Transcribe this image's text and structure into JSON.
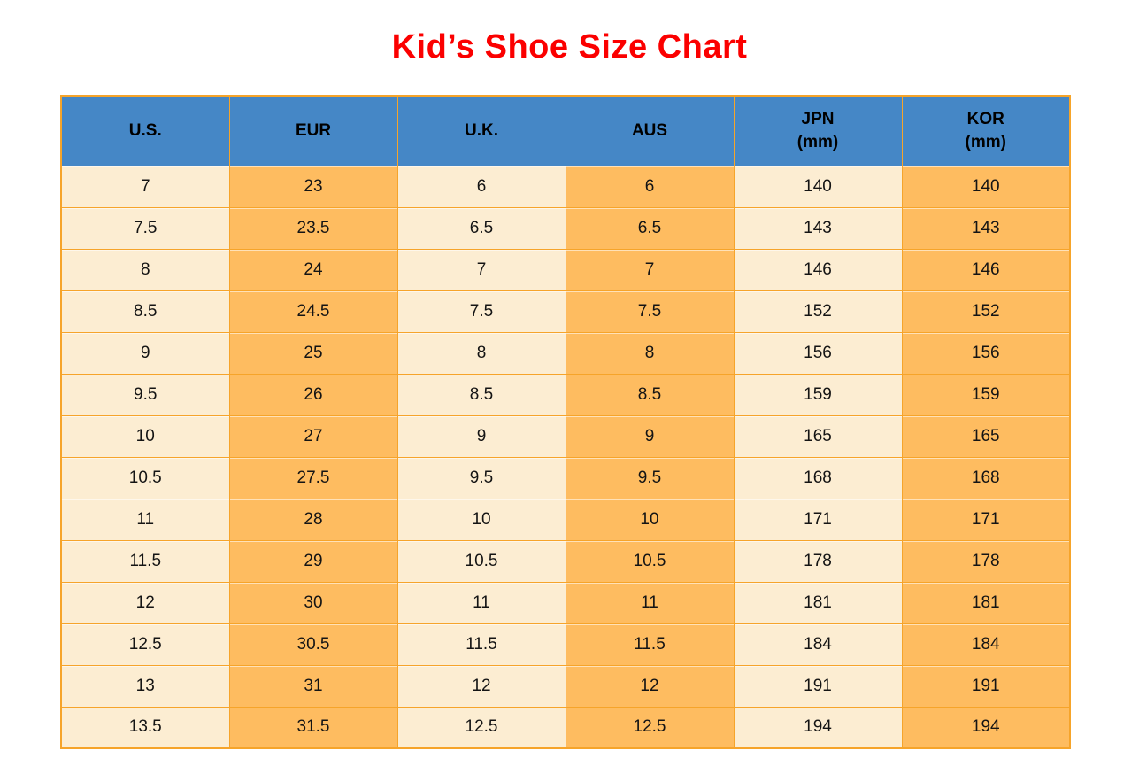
{
  "title": "Kid’s Shoe Size Chart",
  "colors": {
    "title_red": "#FB0000",
    "header_blue": "#4587C6",
    "cell_cream": "#FCEDD2",
    "cell_orange": "#FEBC60",
    "grid_orange": "#F6A42A",
    "text_black": "#141414"
  },
  "chart_data": {
    "type": "table",
    "title": "Kid’s Shoe Size Chart",
    "columns": [
      "U.S.",
      "EUR",
      "U.K.",
      "AUS",
      "JPN (mm)",
      "KOR (mm)"
    ],
    "header_lines": [
      [
        "U.S."
      ],
      [
        "EUR"
      ],
      [
        "U.K."
      ],
      [
        "AUS"
      ],
      [
        "JPN",
        "(mm)"
      ],
      [
        "KOR",
        "(mm)"
      ]
    ],
    "column_fill_pattern": [
      "cream",
      "orange",
      "cream",
      "orange",
      "cream",
      "orange"
    ],
    "rows": [
      [
        "7",
        "23",
        "6",
        "6",
        "140",
        "140"
      ],
      [
        "7.5",
        "23.5",
        "6.5",
        "6.5",
        "143",
        "143"
      ],
      [
        "8",
        "24",
        "7",
        "7",
        "146",
        "146"
      ],
      [
        "8.5",
        "24.5",
        "7.5",
        "7.5",
        "152",
        "152"
      ],
      [
        "9",
        "25",
        "8",
        "8",
        "156",
        "156"
      ],
      [
        "9.5",
        "26",
        "8.5",
        "8.5",
        "159",
        "159"
      ],
      [
        "10",
        "27",
        "9",
        "9",
        "165",
        "165"
      ],
      [
        "10.5",
        "27.5",
        "9.5",
        "9.5",
        "168",
        "168"
      ],
      [
        "11",
        "28",
        "10",
        "10",
        "171",
        "171"
      ],
      [
        "11.5",
        "29",
        "10.5",
        "10.5",
        "178",
        "178"
      ],
      [
        "12",
        "30",
        "11",
        "11",
        "181",
        "181"
      ],
      [
        "12.5",
        "30.5",
        "11.5",
        "11.5",
        "184",
        "184"
      ],
      [
        "13",
        "31",
        "12",
        "12",
        "191",
        "191"
      ],
      [
        "13.5",
        "31.5",
        "12.5",
        "12.5",
        "194",
        "194"
      ]
    ],
    "layout": {
      "grid": true,
      "header_position": "top",
      "legend": "none"
    }
  }
}
